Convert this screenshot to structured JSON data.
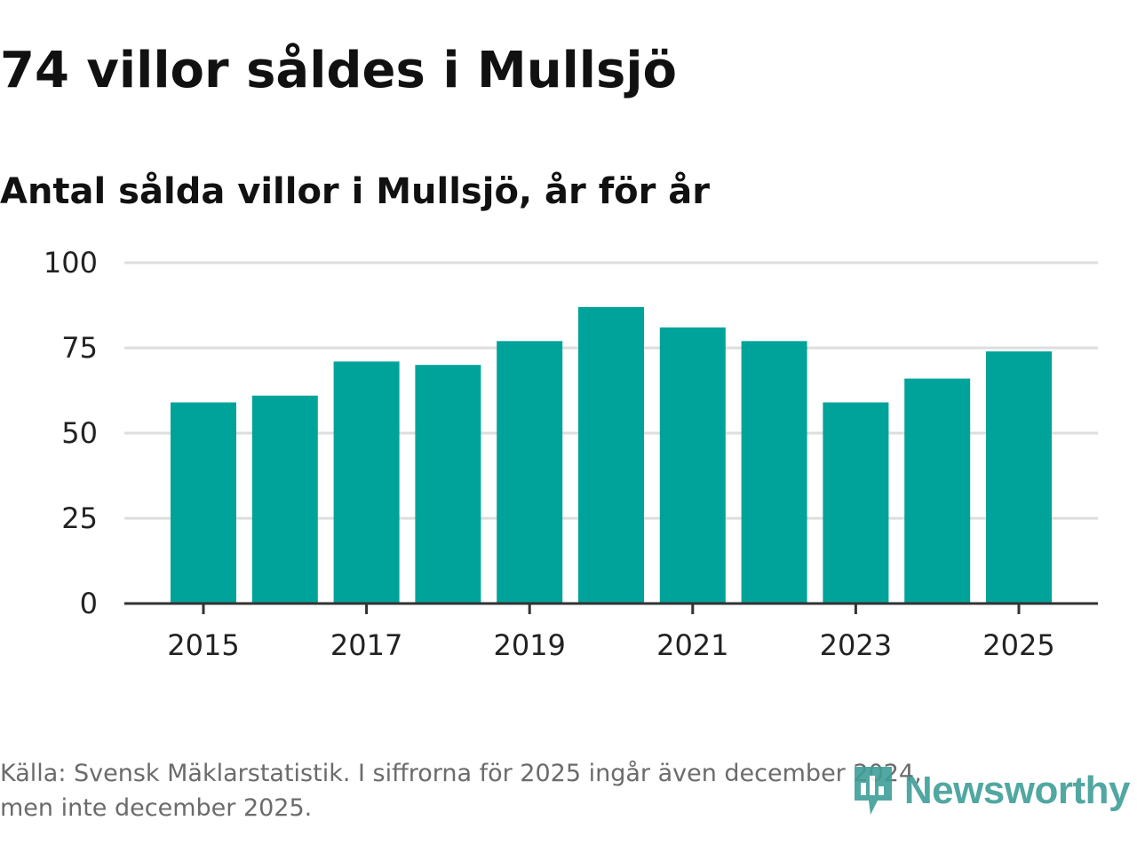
{
  "title": "74 villor såldes i Mullsjö",
  "subtitle": "Antal sålda villor i Mullsjö, år för år",
  "footer": {
    "line1": "Källa: Svensk Mäklarstatistik. I siffrorna för 2025 ingår även december 2024,",
    "line2": "men inte december 2025."
  },
  "brand": {
    "name": "Newsworthy",
    "color": "#3f9e97"
  },
  "chart_data": {
    "type": "bar",
    "title": "Antal sålda villor i Mullsjö, år för år",
    "xlabel": "",
    "ylabel": "",
    "categories": [
      "2015",
      "2016",
      "2017",
      "2018",
      "2019",
      "2020",
      "2021",
      "2022",
      "2023",
      "2024",
      "2025"
    ],
    "values": [
      59,
      61,
      71,
      70,
      77,
      87,
      81,
      77,
      59,
      66,
      74
    ],
    "ylim": [
      0,
      100
    ],
    "yticks": [
      0,
      25,
      50,
      75,
      100
    ],
    "xtick_labels": [
      "2015",
      "2017",
      "2019",
      "2021",
      "2023",
      "2025"
    ],
    "bar_color": "#00a39a",
    "gridlines": true,
    "legend": "none"
  }
}
